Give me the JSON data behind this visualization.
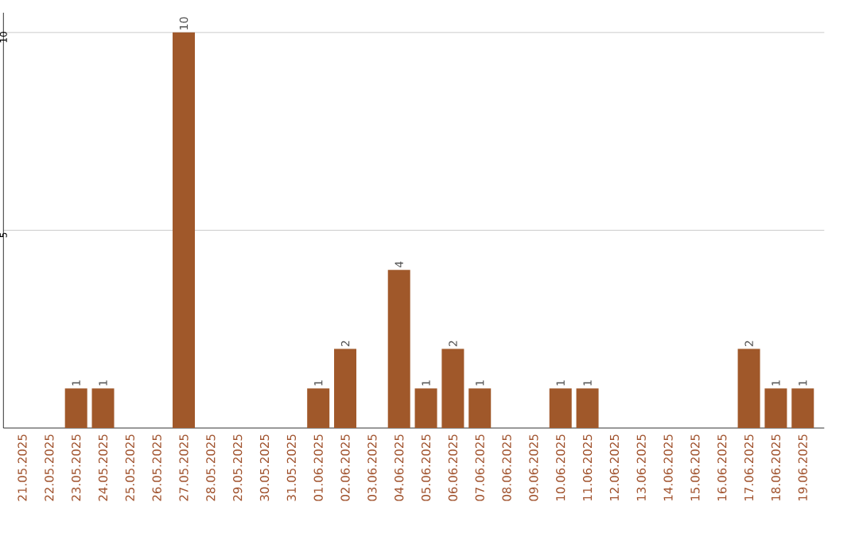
{
  "chart_data": {
    "type": "bar",
    "categories": [
      "21.05.2025",
      "22.05.2025",
      "23.05.2025",
      "24.05.2025",
      "25.05.2025",
      "26.05.2025",
      "27.05.2025",
      "28.05.2025",
      "29.05.2025",
      "30.05.2025",
      "31.05.2025",
      "01.06.2025",
      "02.06.2025",
      "03.06.2025",
      "04.06.2025",
      "05.06.2025",
      "06.06.2025",
      "07.06.2025",
      "08.06.2025",
      "09.06.2025",
      "10.06.2025",
      "11.06.2025",
      "12.06.2025",
      "13.06.2025",
      "14.06.2025",
      "15.06.2025",
      "16.06.2025",
      "17.06.2025",
      "18.06.2025",
      "19.06.2025"
    ],
    "values": [
      0,
      0,
      1,
      1,
      0,
      0,
      10,
      0,
      0,
      0,
      0,
      1,
      2,
      0,
      4,
      1,
      2,
      1,
      0,
      0,
      1,
      1,
      0,
      0,
      0,
      0,
      0,
      2,
      1,
      1
    ],
    "value_labels": [
      null,
      null,
      "1",
      "1",
      null,
      null,
      "10",
      null,
      null,
      null,
      null,
      "1",
      "2",
      null,
      "4",
      "1",
      "2",
      "1",
      null,
      null,
      "1",
      "1",
      null,
      null,
      null,
      null,
      null,
      "2",
      "1",
      "1"
    ],
    "color": "#a0582a",
    "ylim": [
      0,
      10.5
    ],
    "yticks": [
      5,
      10
    ],
    "grid": "y"
  }
}
